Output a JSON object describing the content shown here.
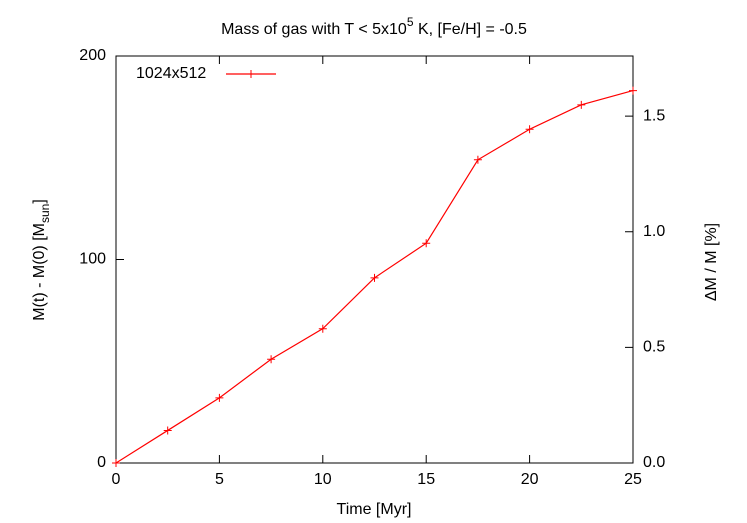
{
  "chart_data": {
    "type": "line",
    "title": {
      "text": "Mass of gas with T < 5x10",
      "superscript": "5",
      "text_after": " K, [Fe/H] = -0.5"
    },
    "x_label": "Time [Myr]",
    "y_label": {
      "text": "M(t) - M(0)   [M",
      "subscript": "sun",
      "text_after": "]"
    },
    "y2_label": "ΔM / M  [%]",
    "x": [
      0,
      2.5,
      5,
      7.5,
      10,
      12.5,
      15,
      17.5,
      20,
      22.5,
      25
    ],
    "series": [
      {
        "name": "1024x512",
        "color": "#ff0000",
        "values": [
          0,
          16,
          32,
          51,
          66,
          91,
          108,
          149,
          164,
          176,
          183
        ]
      }
    ],
    "xlim": [
      0,
      25
    ],
    "xticks": [
      0,
      5,
      10,
      15,
      20,
      25
    ],
    "ylim": [
      0,
      200
    ],
    "yticks": [
      0,
      100,
      200
    ],
    "y2lim": [
      0,
      1.76
    ],
    "y2ticks": [
      {
        "value": 0,
        "label": "0.0"
      },
      {
        "value": 0.5,
        "label": "0.5"
      },
      {
        "value": 1,
        "label": "1.0"
      },
      {
        "value": 1.5,
        "label": "1.5"
      }
    ],
    "legend": "top-left",
    "markers": true
  }
}
